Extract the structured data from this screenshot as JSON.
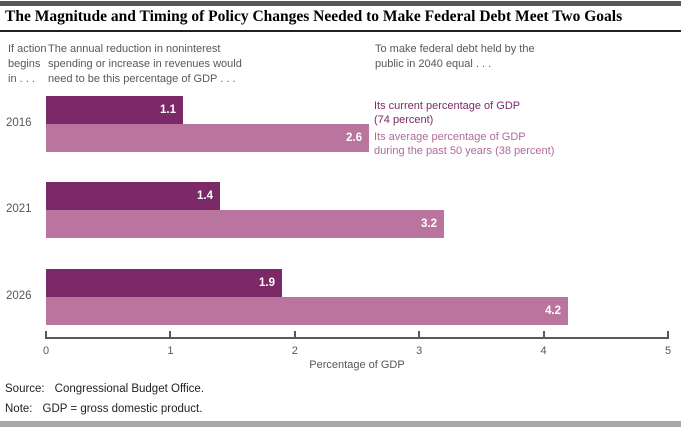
{
  "header": {
    "title": "The Magnitude and Timing of Policy Changes Needed to Make Federal Debt Meet Two Goals"
  },
  "annotations": {
    "if_action": "If action\nbegins\nin . . .",
    "left_main": "The annual reduction in noninterest\nspending or increase in revenues would\nneed to be this percentage of GDP . . .",
    "right": "To make federal debt held by the\npublic in 2040 equal . . ."
  },
  "chart_data": {
    "type": "bar",
    "orientation": "horizontal",
    "title": "The Magnitude and Timing of Policy Changes Needed to Make Federal Debt Meet Two Goals",
    "categories": [
      "2016",
      "2021",
      "2026"
    ],
    "series": [
      {
        "name": "Its current percentage of GDP (74 percent)",
        "color": "#7b2a67",
        "values": [
          1.1,
          1.4,
          1.9
        ]
      },
      {
        "name": "Its average percentage of GDP during the past 50 years (38 percent)",
        "color": "#b9759e",
        "values": [
          2.6,
          3.2,
          4.2
        ]
      }
    ],
    "legend": {
      "position": "right",
      "items": [
        {
          "label": "Its current percentage of GDP\n(74 percent)",
          "text_color": "#7b2a67"
        },
        {
          "label": "Its average percentage of GDP\nduring the past 50 years (38 percent)",
          "text_color": "#b06a9a"
        }
      ]
    },
    "xlabel": "Percentage of GDP",
    "xlim": [
      0,
      5
    ],
    "xticks": [
      "0",
      "1",
      "2",
      "3",
      "4",
      "5"
    ],
    "grid": false,
    "bar_value_labels": [
      "1.1",
      "2.6",
      "1.4",
      "3.2",
      "1.9",
      "4.2"
    ]
  },
  "footer": {
    "source_label": "Source:",
    "source_text": "Congressional Budget Office.",
    "note_label": "Note:",
    "note_text": "GDP = gross domestic product."
  }
}
